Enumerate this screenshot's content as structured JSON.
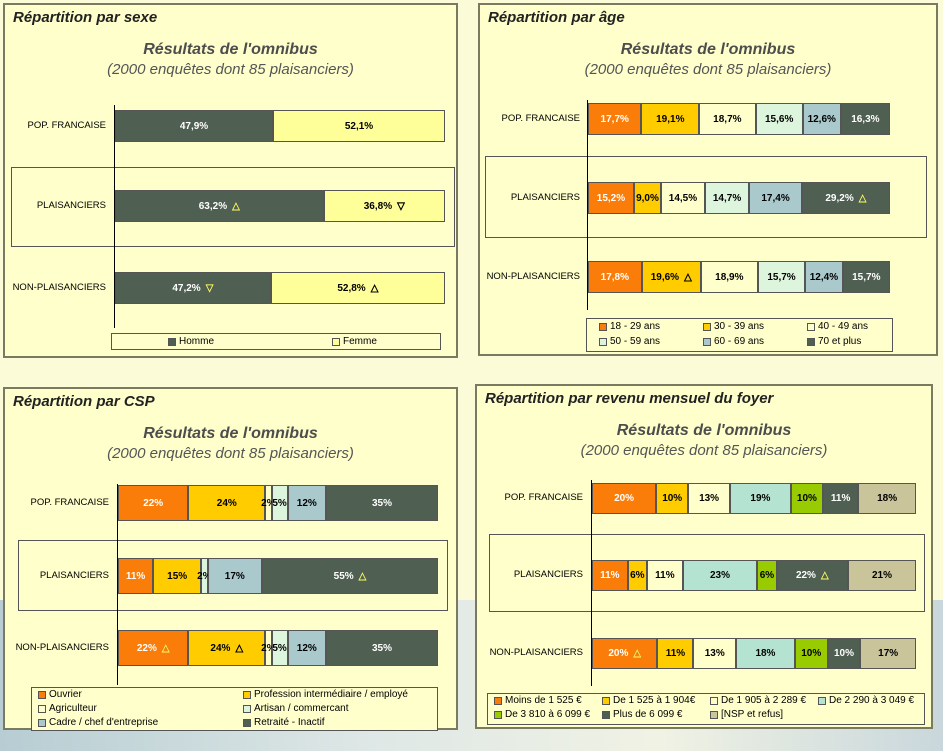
{
  "chart_data": [
    {
      "type": "bar",
      "orientation": "horizontal-stacked",
      "panel_title": "Répartition par sexe",
      "title": "Résultats de l'omnibus",
      "subtitle": "(2000 enquêtes dont 85 plaisanciers)",
      "categories": [
        "POP. FRANCAISE",
        "PLAISANCIERS",
        "NON-PLAISANCIERS"
      ],
      "highlight": "PLAISANCIERS",
      "series": [
        {
          "name": "Homme",
          "color": "#4f5f51",
          "text_color": "#ffffff",
          "values": [
            47.9,
            63.2,
            47.2
          ],
          "labels": [
            "47,9%",
            "63,2%",
            "47,2%"
          ],
          "markers": [
            "",
            "up",
            "down"
          ]
        },
        {
          "name": "Femme",
          "color": "#ffff99",
          "text_color": "#000000",
          "values": [
            52.1,
            36.8,
            52.8
          ],
          "labels": [
            "52,1%",
            "36,8%",
            "52,8%"
          ],
          "markers": [
            "",
            "down",
            "up"
          ]
        }
      ]
    },
    {
      "type": "bar",
      "orientation": "horizontal-stacked",
      "panel_title": "Répartition par âge",
      "title": "Résultats de l'omnibus",
      "subtitle": "(2000 enquêtes dont 85 plaisanciers)",
      "categories": [
        "POP. FRANCAISE",
        "PLAISANCIERS",
        "NON-PLAISANCIERS"
      ],
      "highlight": "PLAISANCIERS",
      "series": [
        {
          "name": "18 - 29 ans",
          "color": "#fa7d0a",
          "text_color": "#ffffff",
          "values": [
            17.7,
            15.2,
            17.8
          ],
          "labels": [
            "17,7%",
            "15,2%",
            "17,8%"
          ],
          "markers": [
            "",
            "",
            ""
          ]
        },
        {
          "name": "30 - 39 ans",
          "color": "#ffcc00",
          "text_color": "#000000",
          "values": [
            19.1,
            9.0,
            19.6
          ],
          "labels": [
            "19,1%",
            "9,0%",
            "19,6%"
          ],
          "markers": [
            "",
            "",
            "up"
          ]
        },
        {
          "name": "40 - 49 ans",
          "color": "#ffffcc",
          "text_color": "#000000",
          "values": [
            18.7,
            14.5,
            18.9
          ],
          "labels": [
            "18,7%",
            "14,5%",
            "18,9%"
          ],
          "markers": [
            "",
            "",
            ""
          ]
        },
        {
          "name": "50 - 59 ans",
          "color": "#ddf5dd",
          "text_color": "#000000",
          "values": [
            15.6,
            14.7,
            15.7
          ],
          "labels": [
            "15,6%",
            "14,7%",
            "15,7%"
          ],
          "markers": [
            "",
            "",
            ""
          ]
        },
        {
          "name": "60 - 69 ans",
          "color": "#a9c9cd",
          "text_color": "#000000",
          "values": [
            12.6,
            17.4,
            12.4
          ],
          "labels": [
            "12,6%",
            "17,4%",
            "12,4%"
          ],
          "markers": [
            "",
            "",
            ""
          ]
        },
        {
          "name": "70 et plus",
          "color": "#4f5f51",
          "text_color": "#ffffff",
          "values": [
            16.3,
            29.2,
            15.7
          ],
          "labels": [
            "16,3%",
            "29,2%",
            "15,7%"
          ],
          "markers": [
            "",
            "up",
            ""
          ]
        }
      ]
    },
    {
      "type": "bar",
      "orientation": "horizontal-stacked",
      "panel_title": "Répartition par CSP",
      "title": "Résultats de l'omnibus",
      "subtitle": "(2000 enquêtes dont 85 plaisanciers)",
      "categories": [
        "POP. FRANCAISE",
        "PLAISANCIERS",
        "NON-PLAISANCIERS"
      ],
      "highlight": "PLAISANCIERS",
      "series": [
        {
          "name": "Ouvrier",
          "color": "#fa7d0a",
          "text_color": "#ffffff",
          "values": [
            22,
            11,
            22
          ],
          "labels": [
            "22%",
            "11%",
            "22%"
          ],
          "markers": [
            "",
            "",
            "up"
          ]
        },
        {
          "name": "Profession intermédiaire / employé",
          "color": "#ffcc00",
          "text_color": "#000000",
          "values": [
            24,
            15,
            24
          ],
          "labels": [
            "24%",
            "15%",
            "24%"
          ],
          "markers": [
            "",
            "",
            "up"
          ]
        },
        {
          "name": "Agriculteur",
          "color": "#ffffcc",
          "text_color": "#000000",
          "values": [
            2,
            0,
            2
          ],
          "labels": [
            "2%",
            "",
            "2%"
          ],
          "markers": [
            "",
            "",
            ""
          ]
        },
        {
          "name": "Artisan / commercant",
          "color": "#ddf5dd",
          "text_color": "#000000",
          "values": [
            5,
            2,
            5
          ],
          "labels": [
            "5%",
            "2%",
            "5%"
          ],
          "markers": [
            "",
            "",
            ""
          ]
        },
        {
          "name": "Cadre / chef d'entreprise",
          "color": "#a9c9cd",
          "text_color": "#000000",
          "values": [
            12,
            17,
            12
          ],
          "labels": [
            "12%",
            "17%",
            "12%"
          ],
          "markers": [
            "",
            "",
            ""
          ]
        },
        {
          "name": "Retraité - Inactif",
          "color": "#4f5f51",
          "text_color": "#ffffff",
          "values": [
            35,
            55,
            35
          ],
          "labels": [
            "35%",
            "55%",
            "35%"
          ],
          "markers": [
            "",
            "up",
            ""
          ]
        }
      ]
    },
    {
      "type": "bar",
      "orientation": "horizontal-stacked",
      "panel_title": "Répartition par revenu mensuel du foyer",
      "title": "Résultats de l'omnibus",
      "subtitle": "(2000 enquêtes dont 85 plaisanciers)",
      "categories": [
        "POP. FRANCAISE",
        "PLAISANCIERS",
        "NON-PLAISANCIERS"
      ],
      "highlight": "PLAISANCIERS",
      "series": [
        {
          "name": "Moins de 1 525 €",
          "color": "#fa7d0a",
          "text_color": "#ffffff",
          "values": [
            20,
            11,
            20
          ],
          "labels": [
            "20%",
            "11%",
            "20%"
          ],
          "markers": [
            "",
            "",
            "up"
          ]
        },
        {
          "name": "De 1 525 à 1 904€",
          "color": "#ffcc00",
          "text_color": "#000000",
          "values": [
            10,
            6,
            11
          ],
          "labels": [
            "10%",
            "6%",
            "11%"
          ],
          "markers": [
            "",
            "",
            ""
          ]
        },
        {
          "name": "De 1 905 à 2 289 €",
          "color": "#ffffcc",
          "text_color": "#000000",
          "values": [
            13,
            11,
            13
          ],
          "labels": [
            "13%",
            "11%",
            "13%"
          ],
          "markers": [
            "",
            "",
            ""
          ]
        },
        {
          "name": "De 2 290 à 3 049 €",
          "color": "#b5e3d2",
          "text_color": "#000000",
          "values": [
            19,
            23,
            18
          ],
          "labels": [
            "19%",
            "23%",
            "18%"
          ],
          "markers": [
            "",
            "",
            ""
          ]
        },
        {
          "name": "De 3 810 à 6 099 €",
          "color": "#99cc00",
          "text_color": "#000000",
          "values": [
            10,
            6,
            10
          ],
          "labels": [
            "10%",
            "6%",
            "10%"
          ],
          "markers": [
            "",
            "",
            ""
          ]
        },
        {
          "name": "Plus de 6 099 €",
          "color": "#4f5f51",
          "text_color": "#ffffff",
          "values": [
            11,
            22,
            10
          ],
          "labels": [
            "11%",
            "22%",
            "10%"
          ],
          "markers": [
            "",
            "up",
            ""
          ]
        },
        {
          "name": "[NSP et refus]",
          "color": "#c9c49a",
          "text_color": "#000000",
          "values": [
            18,
            21,
            17
          ],
          "labels": [
            "18%",
            "21%",
            "17%"
          ],
          "markers": [
            "",
            "",
            ""
          ]
        }
      ]
    }
  ]
}
